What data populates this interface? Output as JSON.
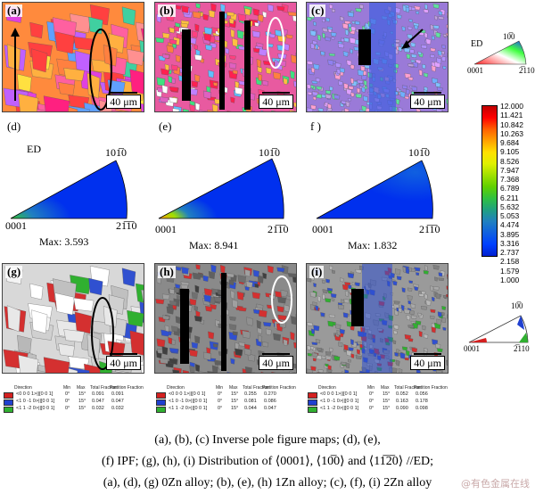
{
  "top_panels": [
    {
      "label": "(a)",
      "scale": "40 μm"
    },
    {
      "label": "(b)",
      "scale": "40 μm"
    },
    {
      "label": "(c)",
      "scale": "40 μm"
    }
  ],
  "ipf_key": {
    "ed": "ED",
    "top": "10̅0",
    "left": "0001",
    "right": "2̅110"
  },
  "ipf_panels": [
    {
      "label": "(d)",
      "ed": "ED",
      "top": "101̅0",
      "left": "0001",
      "right": "21̅1̅0",
      "max": "Max: 3.593"
    },
    {
      "label": "(e)",
      "top": "101̅0",
      "left": "0001",
      "right": "21̅1̅0",
      "max": "Max: 8.941"
    },
    {
      "label": "f )",
      "top": "101̅0",
      "left": "0001",
      "right": "21̅1̅0",
      "max": "Max: 1.832"
    }
  ],
  "colorbar": {
    "ticks": [
      "12.000",
      "11.421",
      "10.842",
      "10.263",
      "9.684",
      "9.105",
      "8.526",
      "7.947",
      "7.368",
      "6.789",
      "6.211",
      "5.632",
      "5.053",
      "4.474",
      "3.895",
      "3.316",
      "2.737",
      "2.158",
      "1.579",
      "1.000"
    ],
    "colors": [
      "#c00000",
      "#ff0000",
      "#ff6000",
      "#ffa000",
      "#ffe000",
      "#e0f000",
      "#a0e000",
      "#60d000",
      "#30c040",
      "#20a080",
      "#2080c0",
      "#1060e0",
      "#0040ff",
      "#0020d0"
    ]
  },
  "bottom_panels": [
    {
      "label": "(g)",
      "scale": "40 μm"
    },
    {
      "label": "(h)",
      "scale": "40 μm"
    },
    {
      "label": "(i)",
      "scale": "40 μm"
    }
  ],
  "bottom_key": {
    "left": "0001",
    "top": "10̅0",
    "right": "2̅110"
  },
  "tables": [
    {
      "headers": [
        "Direction",
        "Min",
        "Max",
        "Total Fraction",
        "Partition Fraction"
      ],
      "rows": [
        [
          "<0 0 0 1>||[0 0 1]",
          "0°",
          "15°",
          "0.091",
          "0.091"
        ],
        [
          "<1 0 -1 0>||[0 0 1]",
          "0°",
          "15°",
          "0.047",
          "0.047"
        ],
        [
          "<1 1 -2 0>||[0 0 1]",
          "0°",
          "15°",
          "0.032",
          "0.032"
        ]
      ]
    },
    {
      "headers": [
        "Direction",
        "Min",
        "Max",
        "Total Fraction",
        "Partition Fraction"
      ],
      "rows": [
        [
          "<0 0 0 1>||[0 0 1]",
          "0°",
          "15°",
          "0.255",
          "0.270"
        ],
        [
          "<1 0 -1 0>||[0 0 1]",
          "0°",
          "15°",
          "0.081",
          "0.086"
        ],
        [
          "<1 1 -2 0>||[0 0 1]",
          "0°",
          "15°",
          "0.044",
          "0.047"
        ]
      ]
    },
    {
      "headers": [
        "Direction",
        "Min",
        "Max",
        "Total Fraction",
        "Partition Fraction"
      ],
      "rows": [
        [
          "<0 0 0 1>||[0 0 1]",
          "0°",
          "15°",
          "0.052",
          "0.056"
        ],
        [
          "<1 0 -1 0>||[0 0 1]",
          "0°",
          "15°",
          "0.163",
          "0.178"
        ],
        [
          "<1 1 -2 0>||[0 0 1]",
          "0°",
          "15°",
          "0.090",
          "0.098"
        ]
      ]
    }
  ],
  "table_swatch_colors": [
    "#d42020",
    "#2040d0",
    "#30b030"
  ],
  "caption": [
    "(a), (b), (c) Inverse pole figure maps; (d), (e),",
    "(f) IPF; (g), (h), (i) Distribution of ⟨0001⟩, ⟨10̅0⟩ and ⟨11̅2̅0⟩ //ED;",
    "(a), (d), (g) 0Zn alloy; (b), (e), (h) 1Zn alloy; (c), (f), (i) 2Zn alloy"
  ],
  "watermark": "@有色金属在线"
}
